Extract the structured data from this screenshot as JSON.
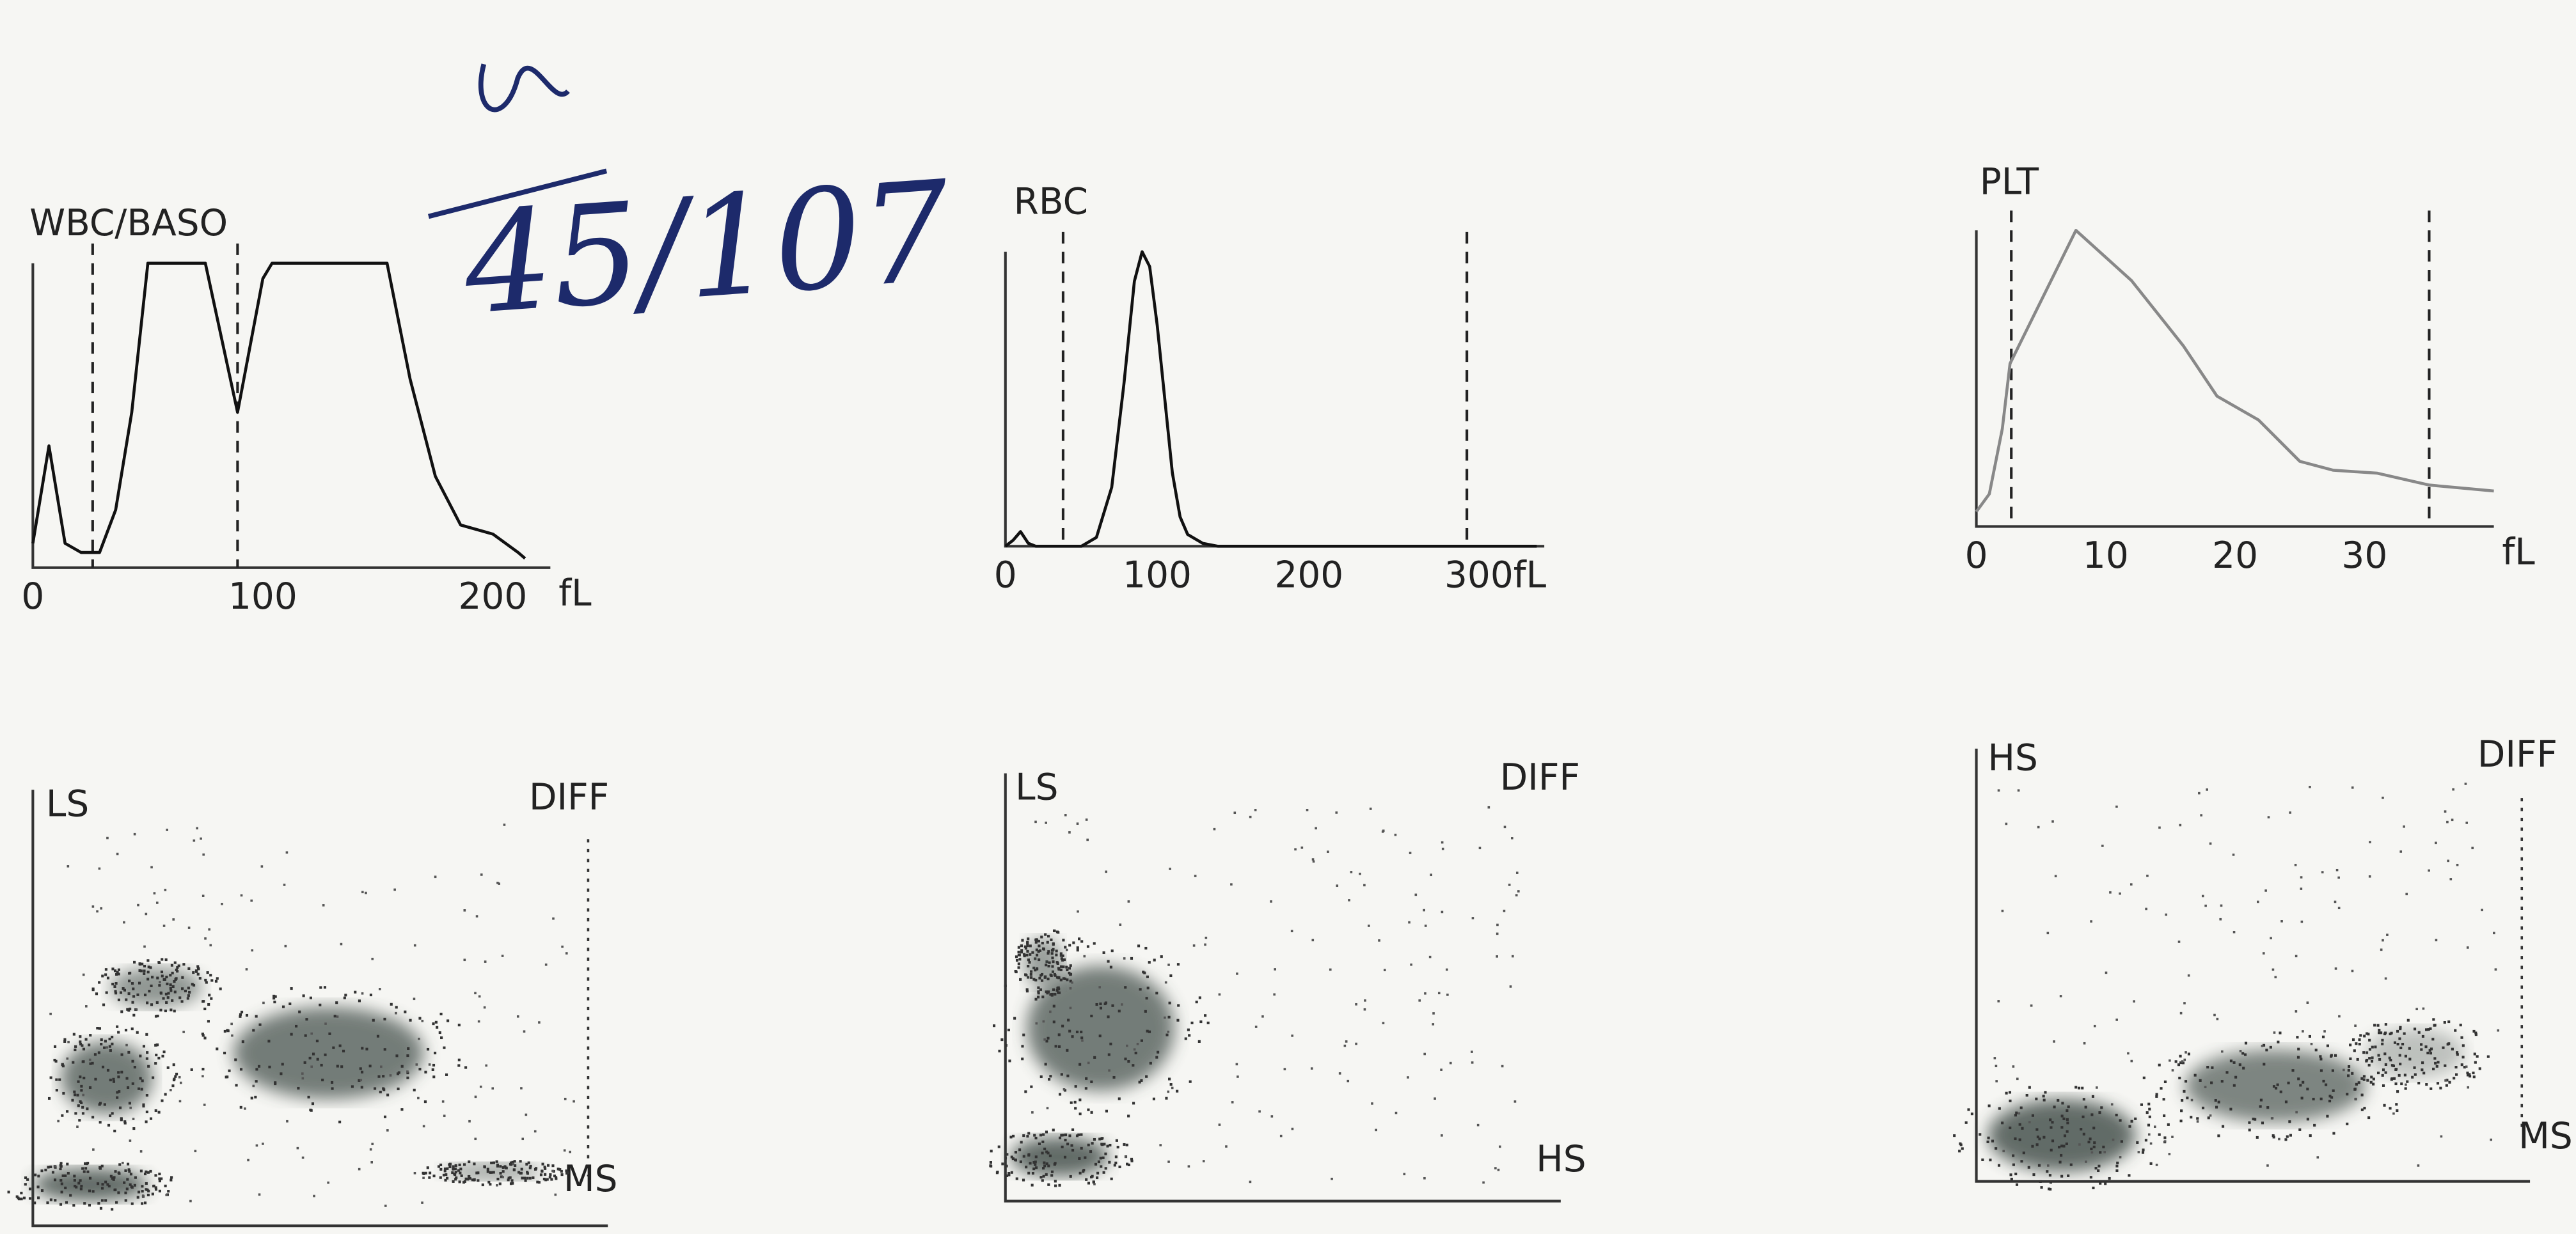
{
  "annotation": "45/107",
  "chart_data": [
    {
      "type": "line",
      "title": "WBC/BASO",
      "color": "#111111",
      "x": [
        0,
        7,
        14,
        21,
        29,
        36,
        43,
        50,
        75,
        89,
        100,
        104,
        154,
        164,
        175,
        186,
        200,
        211,
        214
      ],
      "values": [
        8,
        40,
        8,
        5,
        5,
        19,
        51,
        100,
        100,
        51,
        95,
        100,
        100,
        62,
        30,
        14,
        11,
        5,
        3
      ],
      "xlim": [
        0,
        225
      ],
      "ylim": [
        0,
        100
      ],
      "xticks": [
        0,
        100,
        200
      ],
      "x_unit": "fL",
      "thresholds": [
        26,
        89
      ]
    },
    {
      "type": "line",
      "title": "RBC",
      "color": "#111111",
      "x": [
        0,
        5,
        10,
        15,
        20,
        50,
        60,
        70,
        78,
        85,
        90,
        95,
        100,
        105,
        110,
        115,
        120,
        130,
        140,
        350
      ],
      "values": [
        0,
        2,
        5,
        1,
        0,
        0,
        3,
        20,
        55,
        90,
        100,
        95,
        75,
        50,
        25,
        10,
        4,
        1,
        0,
        0
      ],
      "xlim": [
        0,
        355
      ],
      "ylim": [
        0,
        100
      ],
      "xticks": [
        0,
        100,
        200,
        {
          "value": 300,
          "label": "300fL"
        }
      ],
      "thresholds": [
        38,
        304
      ]
    },
    {
      "type": "line",
      "title": "PLT",
      "color": "#888888",
      "x": [
        0,
        1,
        2,
        2.6,
        7.7,
        12,
        16,
        18.6,
        21.8,
        25,
        27.6,
        31,
        35,
        40
      ],
      "values": [
        5,
        11,
        33,
        55,
        100,
        83,
        61,
        44,
        36,
        22,
        19,
        18,
        14,
        12
      ],
      "xlim": [
        0,
        40
      ],
      "ylim": [
        0,
        100
      ],
      "xticks": [
        0,
        10,
        20,
        30
      ],
      "x_unit": "fL",
      "thresholds": [
        2.7,
        35
      ]
    },
    {
      "type": "scatter",
      "title": "DIFF",
      "y_label": "LS",
      "x_label": "MS"
    },
    {
      "type": "scatter",
      "title": "DIFF",
      "y_label": "LS",
      "x_label": "HS"
    },
    {
      "type": "scatter",
      "title": "DIFF",
      "y_label": "HS",
      "x_label": "MS"
    }
  ]
}
